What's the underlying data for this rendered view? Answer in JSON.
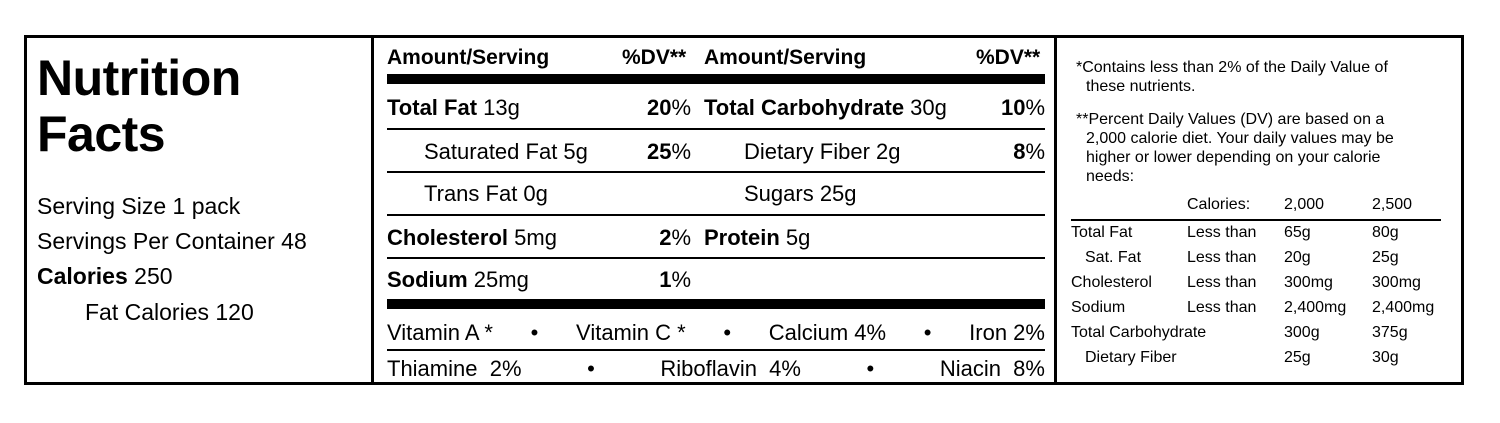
{
  "left": {
    "title_line1": "Nutrition",
    "title_line2": "Facts",
    "serving_size": "Serving Size 1 pack",
    "servings_per_container": "Servings Per Container 48",
    "calories_label": "Calories",
    "calories_value": " 250",
    "fat_calories": "Fat Calories 120"
  },
  "middle": {
    "header_amount_1": "Amount/Serving",
    "header_dv_1": "%DV**",
    "header_amount_2": "Amount/Serving",
    "header_dv_2": "%DV**",
    "total_fat_label": "Total Fat",
    "total_fat_amount": " 13g",
    "total_fat_dv_num": "20",
    "total_fat_dv_pct": "%",
    "total_carb_label": "Total Carbohydrate",
    "total_carb_amount": " 30g",
    "total_carb_dv_num": "10",
    "total_carb_dv_pct": "%",
    "sat_fat": "Saturated Fat 5g",
    "sat_fat_dv_num": "25",
    "sat_fat_dv_pct": "%",
    "fiber": "Dietary Fiber 2g",
    "fiber_dv_num": "8",
    "fiber_dv_pct": "%",
    "trans_fat": "Trans Fat 0g",
    "sugars": "Sugars 25g",
    "cholesterol_label": "Cholesterol",
    "cholesterol_amount": " 5mg",
    "cholesterol_dv_num": "2",
    "cholesterol_dv_pct": "%",
    "protein_label": "Protein",
    "protein_amount": " 5g",
    "sodium_label": "Sodium",
    "sodium_amount": " 25mg",
    "sodium_dv_num": "1",
    "sodium_dv_pct": "%",
    "vitamins_row1": [
      "Vitamin A *",
      "•",
      "Vitamin C *",
      "•",
      "Calcium 4%",
      "•",
      "Iron 2%"
    ],
    "vitamins_row2": [
      "Thiamine  2%",
      "•",
      "Riboflavin  4%",
      "•",
      "Niacin  8%"
    ]
  },
  "right": {
    "note1_line1": "*Contains less than 2% of the Daily Value of",
    "note1_line2": "these nutrients.",
    "note2_line1": "**Percent Daily Values (DV) are based on a",
    "note2_line2": "2,000 calorie diet. Your daily values may be",
    "note2_line3": "higher or lower depending on your calorie",
    "note2_line4": "needs:",
    "table_header": [
      "Calories:",
      "2,000",
      "2,500"
    ],
    "table_rows": [
      [
        "Total Fat",
        "Less than",
        "65g",
        "80g"
      ],
      [
        "Sat. Fat",
        "Less than",
        "20g",
        "25g"
      ],
      [
        "Cholesterol",
        "Less than",
        "300mg",
        "300mg"
      ],
      [
        "Sodium",
        "Less than",
        "2,400mg",
        "2,400mg"
      ],
      [
        "Total Carbohydrate",
        "",
        "300g",
        "375g"
      ],
      [
        "Dietary Fiber",
        "",
        "25g",
        "30g"
      ]
    ]
  }
}
